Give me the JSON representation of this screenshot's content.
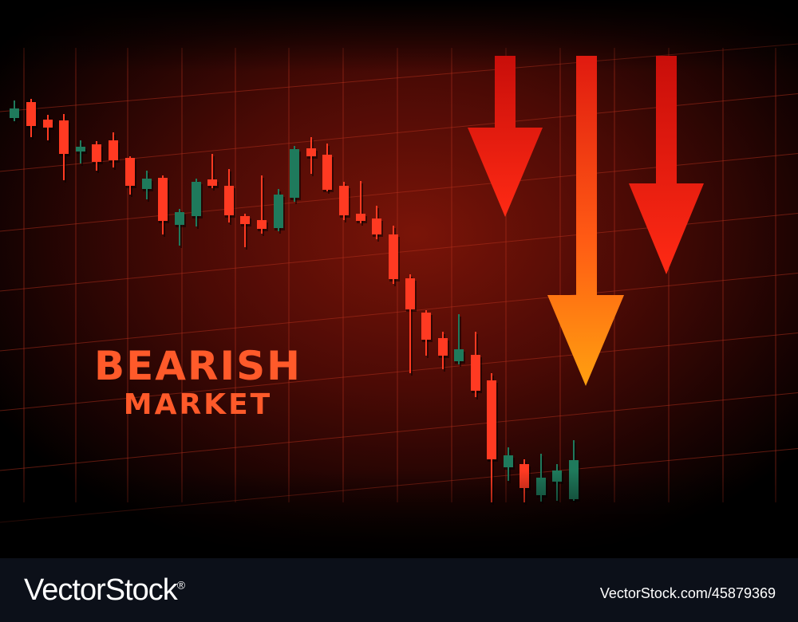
{
  "headline": {
    "line1": "BEARISH",
    "line2": "MARKET"
  },
  "footer": {
    "brand": "VectorStock",
    "brand_mark": "®",
    "image_id": "VectorStock.com/45879369"
  },
  "colors": {
    "background": "#000000",
    "chart_glow": "#7a1408",
    "grid_line": "#b8321e",
    "bear_candle": "#ff3a22",
    "bull_candle": "#1f7a5c",
    "arrow_top": "#ff1a12",
    "arrow_orange": "#ff9a10",
    "headline": "#ff5a2a",
    "footer_bg": "#0c1019",
    "footer_text": "#ffffff"
  },
  "icons": [
    "down-arrow-icon"
  ]
}
